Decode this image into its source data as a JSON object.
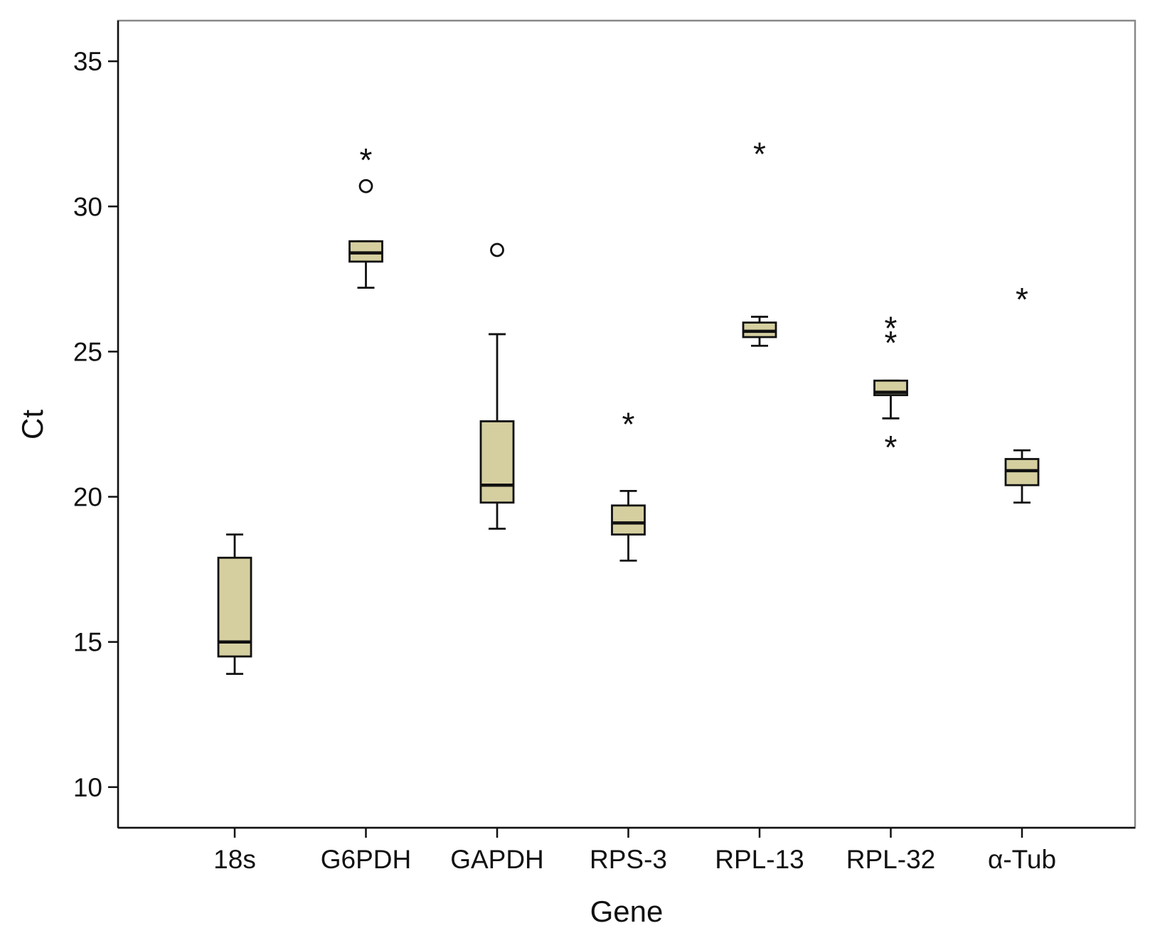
{
  "chart_data": {
    "type": "boxplot",
    "xlabel": "Gene",
    "ylabel": "Ct",
    "ylim": [
      8.6,
      36.4
    ],
    "yticks": [
      10,
      15,
      20,
      25,
      30,
      35
    ],
    "grid": false,
    "box_fill": "#d5cfa0",
    "line_color": "#111111",
    "outlier_symbols": {
      "mild": "circle",
      "extreme": "*"
    },
    "boxes": [
      {
        "label": "18s",
        "whisker_low": 13.9,
        "q1": 14.5,
        "median": 15.0,
        "q3": 17.9,
        "whisker_high": 18.7,
        "outliers": []
      },
      {
        "label": "G6PDH",
        "whisker_low": 27.2,
        "q1": 28.1,
        "median": 28.4,
        "q3": 28.8,
        "whisker_high": 28.8,
        "outliers": [
          {
            "value": 31.7,
            "kind": "extreme"
          },
          {
            "value": 30.7,
            "kind": "mild"
          }
        ]
      },
      {
        "label": "GAPDH",
        "whisker_low": 18.9,
        "q1": 19.8,
        "median": 20.4,
        "q3": 22.6,
        "whisker_high": 25.6,
        "outliers": [
          {
            "value": 28.5,
            "kind": "mild"
          }
        ]
      },
      {
        "label": "RPS-3",
        "whisker_low": 17.8,
        "q1": 18.7,
        "median": 19.1,
        "q3": 19.7,
        "whisker_high": 20.2,
        "outliers": [
          {
            "value": 22.6,
            "kind": "extreme"
          }
        ]
      },
      {
        "label": "RPL-13",
        "whisker_low": 25.2,
        "q1": 25.5,
        "median": 25.7,
        "q3": 26.0,
        "whisker_high": 26.2,
        "outliers": [
          {
            "value": 31.9,
            "kind": "extreme"
          }
        ]
      },
      {
        "label": "RPL-32",
        "whisker_low": 22.7,
        "q1": 23.5,
        "median": 23.6,
        "q3": 24.0,
        "whisker_high": 24.0,
        "outliers": [
          {
            "value": 25.9,
            "kind": "extreme"
          },
          {
            "value": 25.4,
            "kind": "extreme"
          },
          {
            "value": 21.8,
            "kind": "extreme"
          }
        ]
      },
      {
        "label": "α-Tub",
        "whisker_low": 19.8,
        "q1": 20.4,
        "median": 20.9,
        "q3": 21.3,
        "whisker_high": 21.6,
        "outliers": [
          {
            "value": 26.9,
            "kind": "extreme"
          }
        ]
      }
    ]
  }
}
